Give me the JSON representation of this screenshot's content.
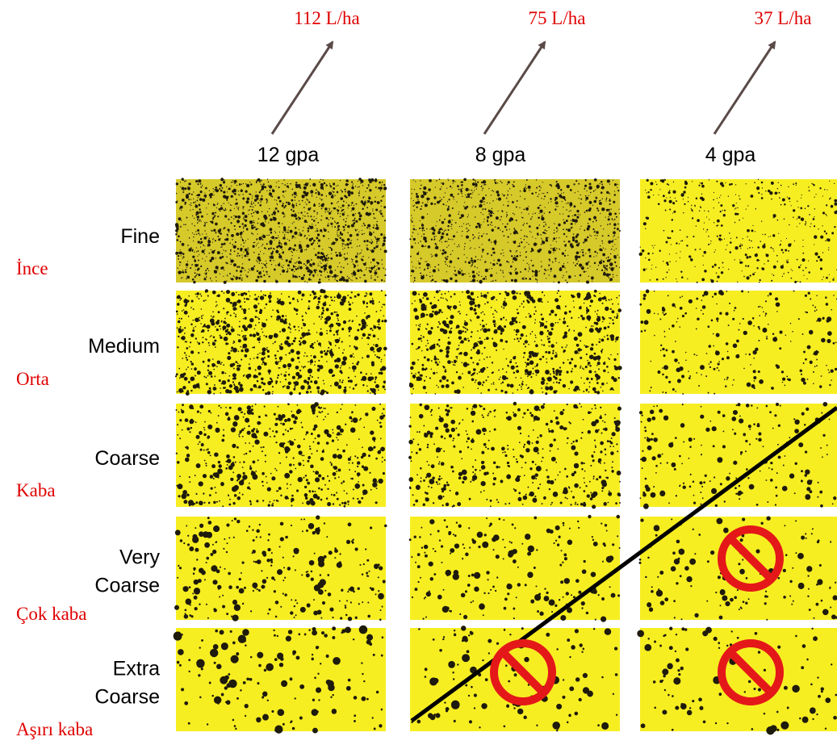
{
  "columns": [
    {
      "rate_metric": "112 L/ha",
      "rate_gpa": "12 gpa"
    },
    {
      "rate_metric": "75 L/ha",
      "rate_gpa": "8 gpa"
    },
    {
      "rate_metric": "37 L/ha",
      "rate_gpa": "4 gpa"
    }
  ],
  "rows": [
    {
      "label": [
        "Fine"
      ],
      "translation": "İnce"
    },
    {
      "label": [
        "Medium"
      ],
      "translation": "Orta"
    },
    {
      "label": [
        "Coarse"
      ],
      "translation": "Kaba"
    },
    {
      "label": [
        "Very",
        "Coarse"
      ],
      "translation": "Çok kaba"
    },
    {
      "label": [
        "Extra",
        "Coarse"
      ],
      "translation": "Aşırı kaba"
    }
  ]
}
